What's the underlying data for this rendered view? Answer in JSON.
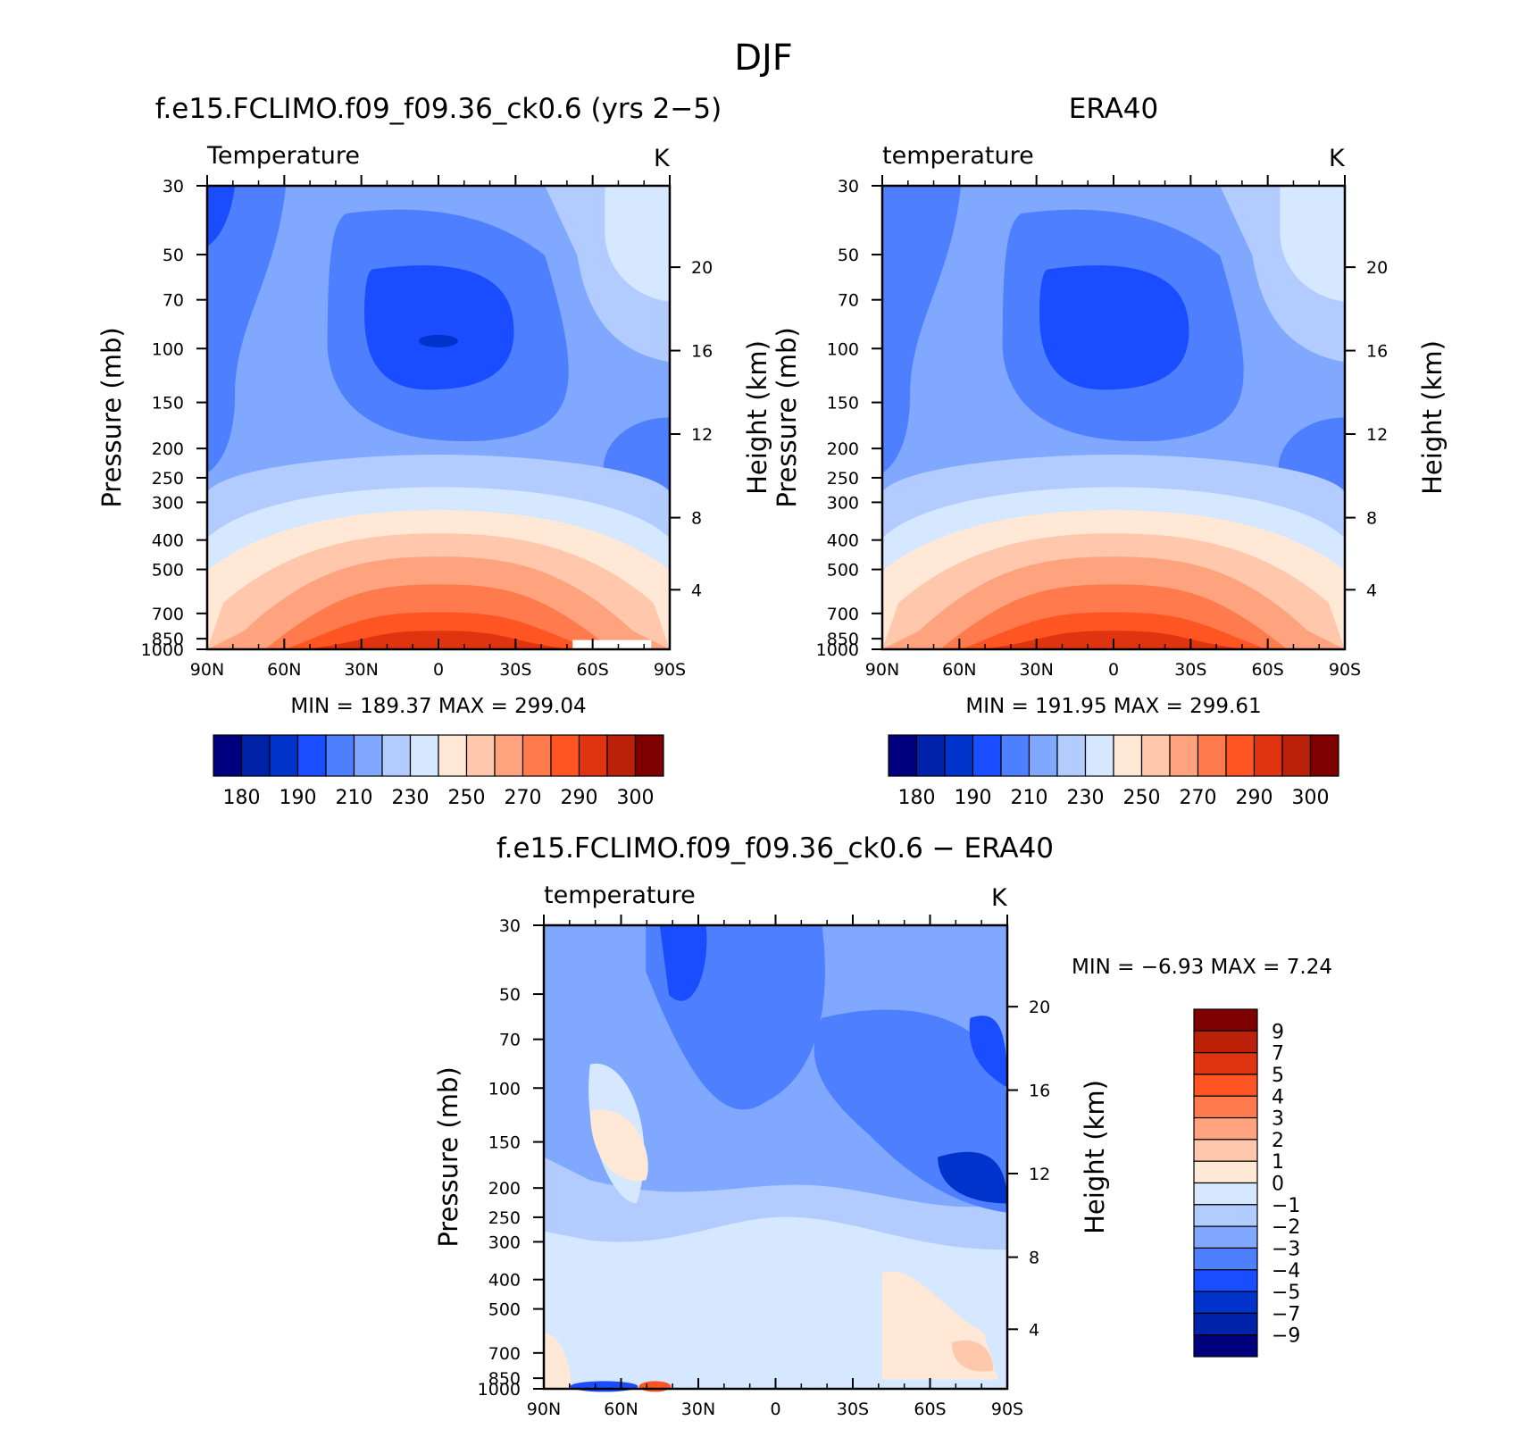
{
  "figure": {
    "title": "DJF"
  },
  "colorbar_colors": {
    "full": [
      "#00007f",
      "#0022a8",
      "#0033cc",
      "#1a4dff",
      "#4d7fff",
      "#80a8ff",
      "#b3ccff",
      "#d6e8ff",
      "#ffe8d6",
      "#ffc8ad",
      "#ffa37e",
      "#ff7a4d",
      "#ff5522",
      "#e03410",
      "#bb2108",
      "#7f0000"
    ],
    "diff": [
      "#7f0000",
      "#bb2108",
      "#e03410",
      "#ff5522",
      "#ff7a4d",
      "#ffa37e",
      "#ffc8ad",
      "#ffe8d6",
      "#d6e8ff",
      "#b3ccff",
      "#80a8ff",
      "#4d7fff",
      "#1a4dff",
      "#0033cc",
      "#0022a8",
      "#00007f"
    ]
  },
  "chart_data": [
    {
      "type": "heatmap",
      "title": "f.e15.FCLIMO.f09_f09.36_ck0.6 (yrs 2−5)",
      "subtitle": "Temperature",
      "units": "K",
      "ylabel": "Pressure (mb)",
      "ylabel_right": "Height (km)",
      "x_ticks": [
        "90N",
        "60N",
        "30N",
        "0",
        "30S",
        "60S",
        "90S"
      ],
      "y_ticks": [
        "30",
        "50",
        "70",
        "100",
        "150",
        "200",
        "250",
        "300",
        "400",
        "500",
        "700",
        "850",
        "1000"
      ],
      "y_right_ticks": [
        "20",
        "16",
        "12",
        "8",
        "4"
      ],
      "stats": "MIN =  189.37   MAX =  299.04",
      "min": 189.37,
      "max": 299.04,
      "colorbar_labels": [
        "180",
        "190",
        "210",
        "230",
        "250",
        "270",
        "290",
        "300"
      ],
      "colorbar_orientation": "horizontal"
    },
    {
      "type": "heatmap",
      "title": "ERA40",
      "subtitle": "temperature",
      "units": "K",
      "ylabel": "Pressure (mb)",
      "ylabel_right": "Height (km)",
      "x_ticks": [
        "90N",
        "60N",
        "30N",
        "0",
        "30S",
        "60S",
        "90S"
      ],
      "y_ticks": [
        "30",
        "50",
        "70",
        "100",
        "150",
        "200",
        "250",
        "300",
        "400",
        "500",
        "700",
        "850",
        "1000"
      ],
      "y_right_ticks": [
        "20",
        "16",
        "12",
        "8",
        "4"
      ],
      "stats": "MIN =  191.95   MAX =  299.61",
      "min": 191.95,
      "max": 299.61,
      "colorbar_labels": [
        "180",
        "190",
        "210",
        "230",
        "250",
        "270",
        "290",
        "300"
      ],
      "colorbar_orientation": "horizontal"
    },
    {
      "type": "heatmap",
      "title": "f.e15.FCLIMO.f09_f09.36_ck0.6 − ERA40",
      "subtitle": "temperature",
      "units": "K",
      "ylabel": "Pressure (mb)",
      "ylabel_right": "Height (km)",
      "x_ticks": [
        "90N",
        "60N",
        "30N",
        "0",
        "30S",
        "60S",
        "90S"
      ],
      "y_ticks": [
        "30",
        "50",
        "70",
        "100",
        "150",
        "200",
        "250",
        "300",
        "400",
        "500",
        "700",
        "850",
        "1000"
      ],
      "y_right_ticks": [
        "20",
        "16",
        "12",
        "8",
        "4"
      ],
      "stats": "MIN =   −6.93   MAX =    7.24",
      "min": -6.93,
      "max": 7.24,
      "colorbar_labels": [
        "9",
        "7",
        "5",
        "4",
        "3",
        "2",
        "1",
        "0",
        "−1",
        "−2",
        "−3",
        "−4",
        "−5",
        "−7",
        "−9"
      ],
      "colorbar_orientation": "vertical"
    }
  ]
}
